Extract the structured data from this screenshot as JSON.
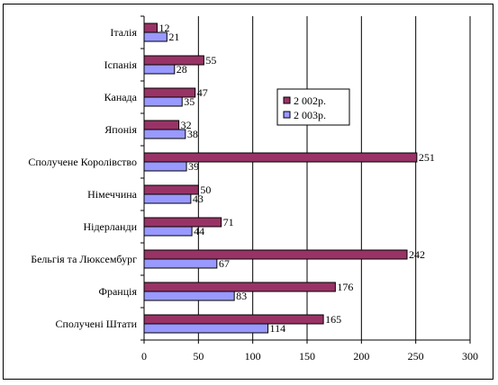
{
  "chart_data": {
    "type": "bar",
    "orientation": "horizontal",
    "categories": [
      "Італія",
      "Іспанія",
      "Канада",
      "Японія",
      "Сполучене Королівство",
      "Німеччина",
      "Нідерланди",
      "Бельгія та Люксембург",
      "Франція",
      "Сполучені Штати"
    ],
    "series": [
      {
        "name": "2 002р.",
        "color": "#993366",
        "values": [
          12,
          55,
          47,
          32,
          251,
          50,
          71,
          242,
          176,
          165
        ]
      },
      {
        "name": "2 003р.",
        "color": "#9999ff",
        "values": [
          21,
          28,
          35,
          38,
          39,
          43,
          44,
          67,
          83,
          114
        ]
      }
    ],
    "xlim": [
      0,
      300
    ],
    "xticks": [
      0,
      50,
      100,
      150,
      200,
      250,
      300
    ],
    "grid": "vertical",
    "legend_position": "right-upper",
    "title": "",
    "xlabel": "",
    "ylabel": ""
  }
}
